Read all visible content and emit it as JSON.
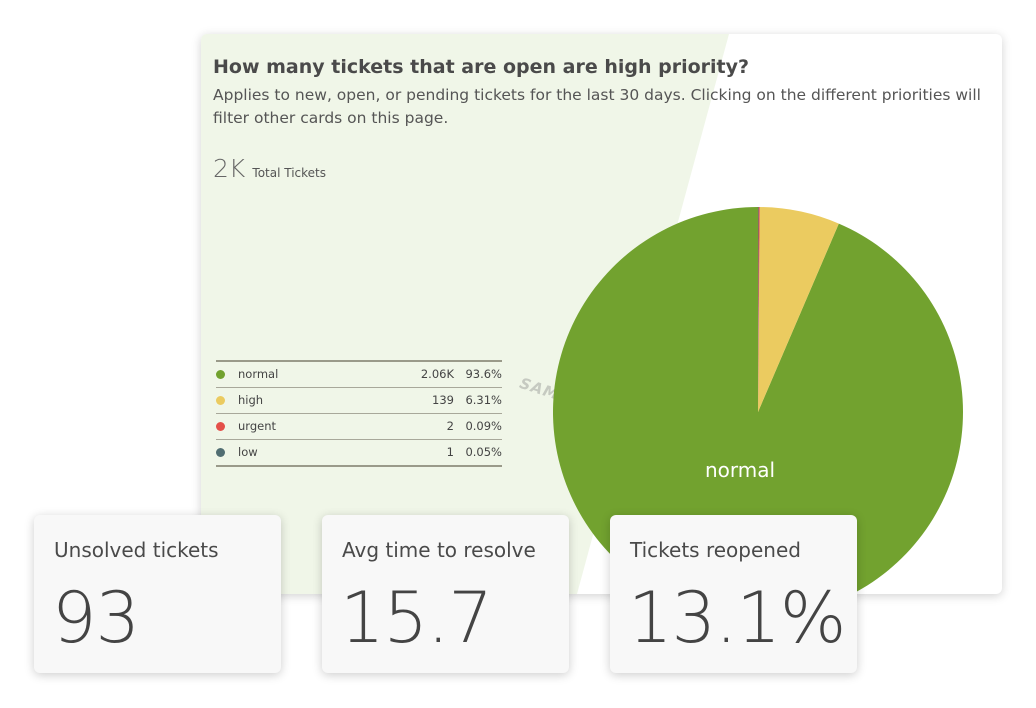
{
  "main_card": {
    "title": "How many tickets that are open are high priority?",
    "description": "Applies to new, open, or pending tickets for the last 30 days. Clicking on the different priorities will filter other cards on this page.",
    "total_value": "2K",
    "total_label": "Total Tickets",
    "watermark": "SAMPLE DATA",
    "pie_label": "normal",
    "legend": [
      {
        "name": "normal",
        "count": "2.06K",
        "pct": "93.6%",
        "color": "#72a22f"
      },
      {
        "name": "high",
        "count": "139",
        "pct": "6.31%",
        "color": "#ebcb60"
      },
      {
        "name": "urgent",
        "count": "2",
        "pct": "0.09%",
        "color": "#e45049"
      },
      {
        "name": "low",
        "count": "1",
        "pct": "0.05%",
        "color": "#516e72"
      }
    ]
  },
  "chart_data": {
    "type": "pie",
    "categories": [
      "normal",
      "high",
      "urgent",
      "low"
    ],
    "values": [
      2060,
      139,
      2,
      1
    ],
    "percentages": [
      93.6,
      6.31,
      0.09,
      0.05
    ],
    "colors": [
      "#72a22f",
      "#ebcb60",
      "#e45049",
      "#516e72"
    ],
    "title": "How many tickets that are open are high priority?",
    "legend": "left"
  },
  "kpis": [
    {
      "label": "Unsolved tickets",
      "value": "93"
    },
    {
      "label": "Avg time to resolve",
      "value": "15.7"
    },
    {
      "label": "Tickets reopened",
      "value": "13.1%"
    }
  ]
}
